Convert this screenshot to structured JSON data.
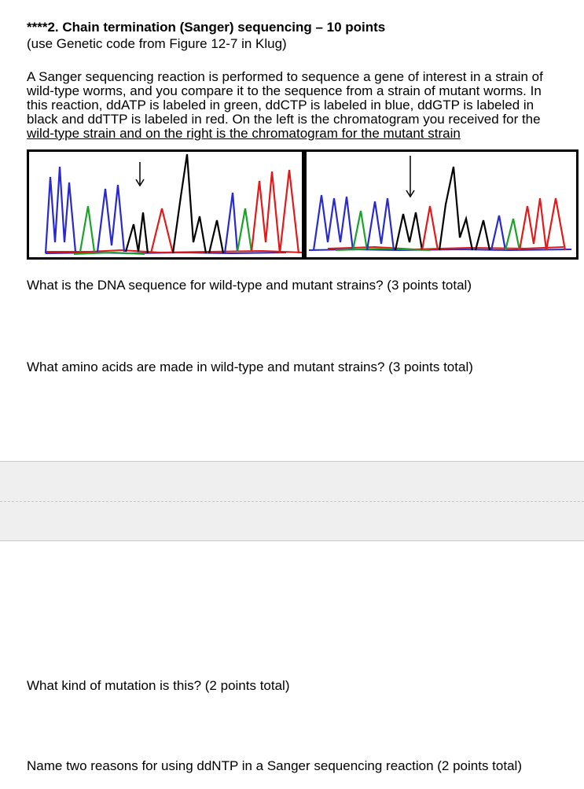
{
  "header": {
    "title_prefix": "****",
    "title": "2. Chain termination (Sanger) sequencing – 10 points",
    "subtitle": "(use Genetic code from Figure 12-7 in Klug)"
  },
  "paragraph": {
    "lines": [
      "A Sanger sequencing reaction is performed to sequence a gene of interest in a strain of",
      "wild-type worms, and you compare it to the sequence from a strain of mutant worms. In",
      "this reaction, ddATP is labeled in green, ddCTP is labeled in blue, ddGTP is labeled in",
      "black and ddTTP is labeled in red. On the left is the chromatogram you received for the",
      "wild-type strain and on the right is the chromatogram for the mutant strain"
    ]
  },
  "questions": [
    "What is the DNA sequence for wild-type and mutant strains? (3 points total)",
    "What amino acids are made in wild-type and mutant strains? (3 points total)",
    "What kind of mutation is this? (2 points total)",
    "Name two reasons for using ddNTP in a Sanger sequencing reaction (2 points total)"
  ],
  "colors": {
    "ddATP": "#1aa32a",
    "ddCTP": "#2a2acc",
    "ddGTP": "#000000",
    "ddTTP": "#e01b1b"
  }
}
